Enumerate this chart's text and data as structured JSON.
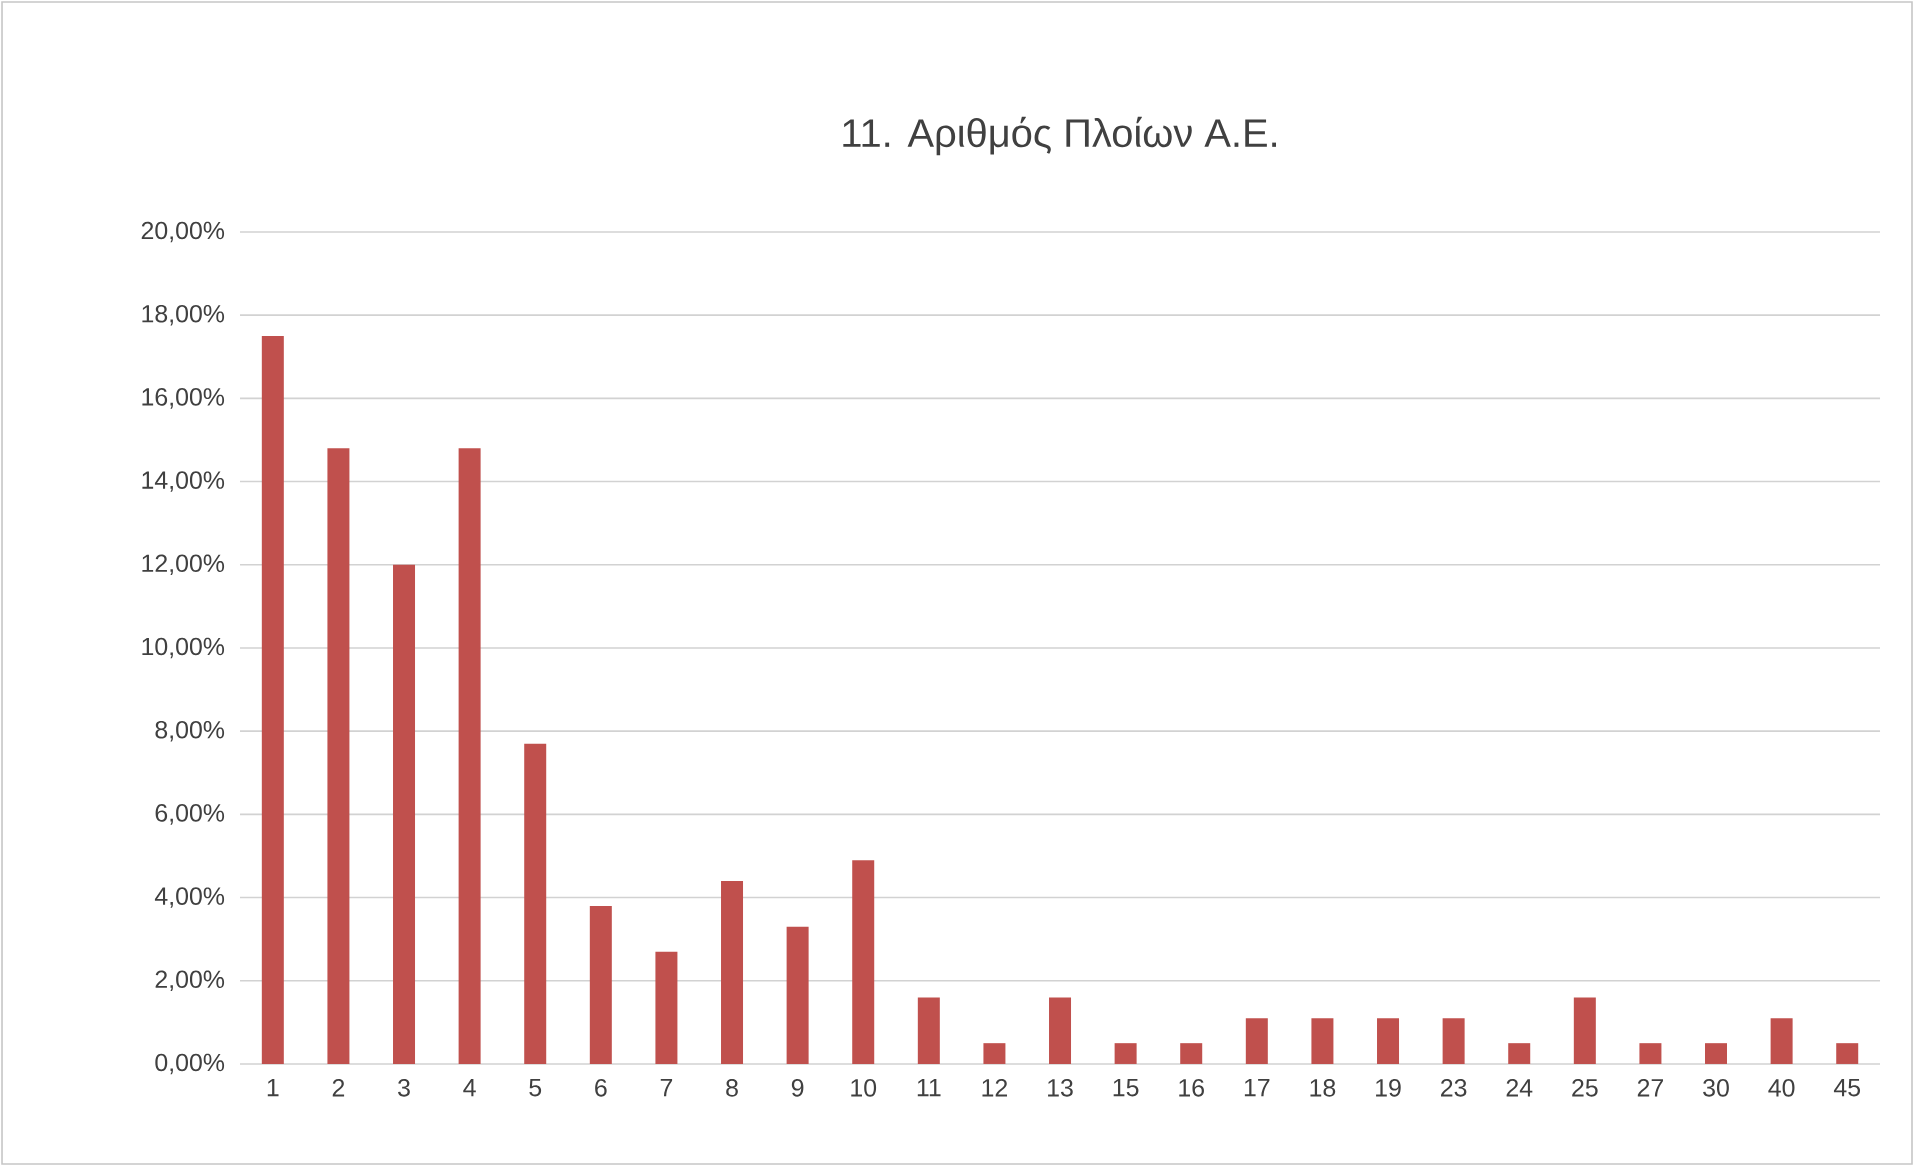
{
  "chart_data": {
    "type": "bar",
    "title": "11. Αριθμός Πλοίων Α.Ε.",
    "categories": [
      "1",
      "2",
      "3",
      "4",
      "5",
      "6",
      "7",
      "8",
      "9",
      "10",
      "11",
      "12",
      "13",
      "15",
      "16",
      "17",
      "18",
      "19",
      "23",
      "24",
      "25",
      "27",
      "30",
      "40",
      "45"
    ],
    "values": [
      17.5,
      14.8,
      12.0,
      14.8,
      7.7,
      3.8,
      2.7,
      4.4,
      3.3,
      4.9,
      1.6,
      0.5,
      1.6,
      0.5,
      0.5,
      1.1,
      1.1,
      1.1,
      1.1,
      0.5,
      1.6,
      0.5,
      0.5,
      1.1,
      0.5
    ],
    "color": "#c0504d",
    "ylim": [
      0,
      20
    ],
    "yticks": [
      {
        "value": 0,
        "label": "0,00%"
      },
      {
        "value": 2,
        "label": "2,00%"
      },
      {
        "value": 4,
        "label": "4,00%"
      },
      {
        "value": 6,
        "label": "6,00%"
      },
      {
        "value": 8,
        "label": "8,00%"
      },
      {
        "value": 10,
        "label": "10,00%"
      },
      {
        "value": 12,
        "label": "12,00%"
      },
      {
        "value": 14,
        "label": "14,00%"
      },
      {
        "value": 16,
        "label": "16,00%"
      },
      {
        "value": 18,
        "label": "18,00%"
      },
      {
        "value": 20,
        "label": "20,00%"
      }
    ],
    "grid": "y"
  }
}
